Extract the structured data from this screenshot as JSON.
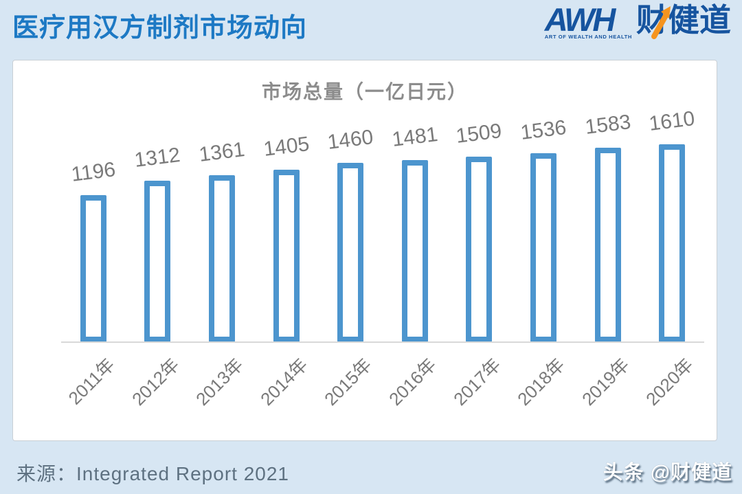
{
  "header": {
    "title": "医疗用汉方制剂市场动向"
  },
  "logo": {
    "awh_text": "AWH",
    "tagline": "ART OF WEALTH AND HEALTH",
    "brand_text": "财健道"
  },
  "chart_data": {
    "type": "bar",
    "title": "市场总量（一亿日元）",
    "categories": [
      "2011年",
      "2012年",
      "2013年",
      "2014年",
      "2015年",
      "2016年",
      "2017年",
      "2018年",
      "2019年",
      "2020年"
    ],
    "values": [
      1196,
      1312,
      1361,
      1405,
      1460,
      1481,
      1509,
      1536,
      1583,
      1610
    ],
    "ylim": [
      0,
      1610
    ],
    "xlabel": "",
    "ylabel": "",
    "grid": false,
    "legend": "none",
    "bar_style": "hollow-outline",
    "value_labels_shown": true,
    "x_tick_rotation_deg": -45
  },
  "footer": {
    "source": "来源：Integrated Report 2021",
    "watermark": "头条 @财健道"
  },
  "colors": {
    "page_background": "#d7e6f3",
    "panel_background": "#ffffff",
    "header_title_blue": "#1d79c4",
    "logo_blue": "#16549f",
    "arrow_orange": "#f5941f",
    "bar_outline_blue": "#4c95ce",
    "label_gray": "#7a7a7a",
    "chart_title_gray": "#8c8c8c",
    "axis_line_gray": "#d9d9d9",
    "source_gray": "#5e7181",
    "watermark_white": "#ffffff"
  }
}
